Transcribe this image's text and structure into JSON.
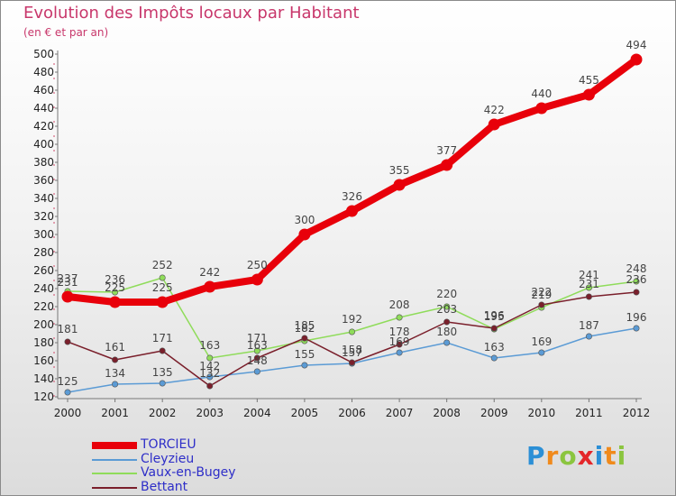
{
  "chart_data": {
    "type": "line",
    "title": "Evolution des Impôts locaux par Habitant",
    "subtitle": "(en € et par an)",
    "x": [
      "2000",
      "2001",
      "2002",
      "2003",
      "2004",
      "2005",
      "2006",
      "2007",
      "2008",
      "2009",
      "2010",
      "2011",
      "2012"
    ],
    "ylim": [
      120,
      500
    ],
    "yticks": [
      120,
      140,
      160,
      180,
      200,
      220,
      240,
      260,
      280,
      300,
      320,
      340,
      360,
      380,
      400,
      420,
      440,
      460,
      480,
      500
    ],
    "grid": false,
    "legend_position": "bottom-left",
    "series": [
      {
        "name": "TORCIEU",
        "color": "#e8000a",
        "values": [
          231,
          225,
          225,
          242,
          250,
          300,
          326,
          355,
          377,
          422,
          440,
          455,
          494
        ]
      },
      {
        "name": "Cleyzieu",
        "color": "#5b9bd5",
        "values": [
          125,
          134,
          135,
          142,
          148,
          155,
          157,
          169,
          180,
          163,
          169,
          187,
          196
        ]
      },
      {
        "name": "Vaux-en-Bugey",
        "color": "#8fdc5a",
        "values": [
          237,
          236,
          252,
          163,
          171,
          182,
          192,
          208,
          220,
          195,
          219,
          241,
          248
        ]
      },
      {
        "name": "Bettant",
        "color": "#7a1f2b",
        "values": [
          181,
          161,
          171,
          132,
          163,
          185,
          158,
          178,
          203,
          196,
          222,
          231,
          236
        ]
      }
    ]
  },
  "logo": {
    "text": "Proxiti",
    "letter_colors": [
      "#2b8fd6",
      "#f08a1c",
      "#8bc53f",
      "#e4262a",
      "#2b8fd6",
      "#f08a1c",
      "#8bc53f"
    ]
  }
}
